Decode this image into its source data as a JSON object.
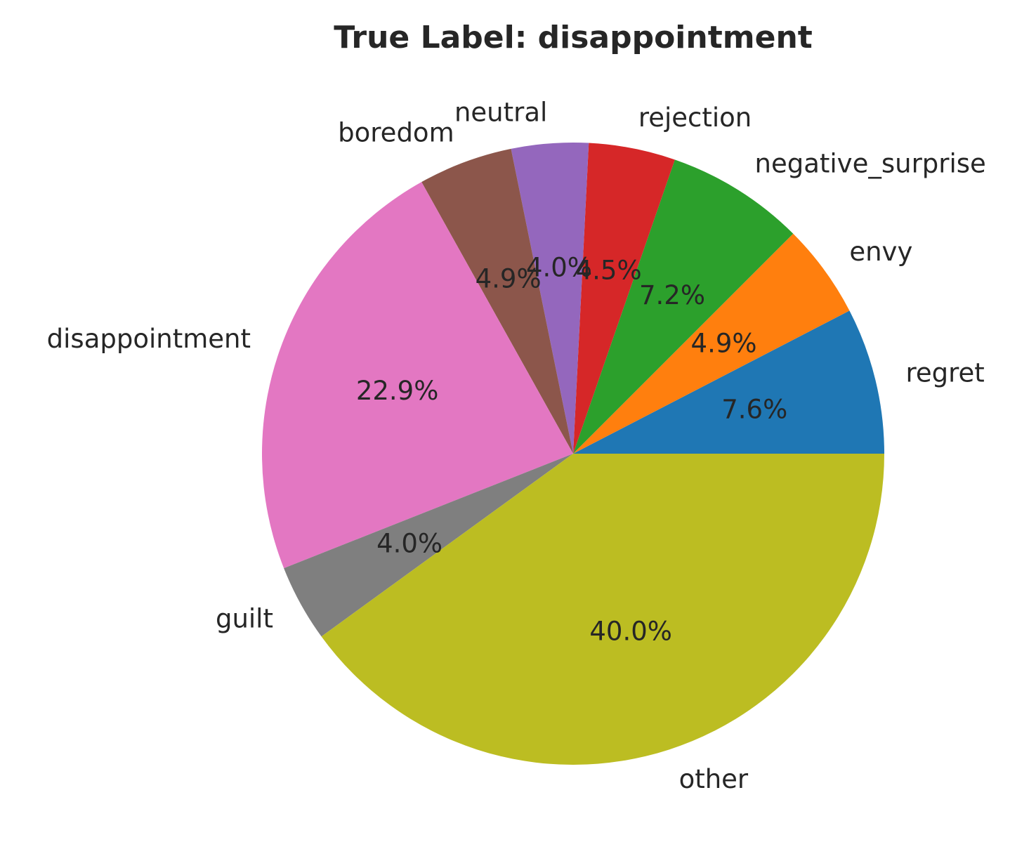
{
  "chart_data": {
    "type": "pie",
    "title": "True Label: disappointment",
    "slices": [
      {
        "label": "regret",
        "value": 7.6,
        "pct_text": "7.6%",
        "color": "#1f77b4"
      },
      {
        "label": "envy",
        "value": 4.9,
        "pct_text": "4.9%",
        "color": "#ff7f0e"
      },
      {
        "label": "negative_surprise",
        "value": 7.2,
        "pct_text": "7.2%",
        "color": "#2ca02c"
      },
      {
        "label": "rejection",
        "value": 4.5,
        "pct_text": "4.5%",
        "color": "#d62728"
      },
      {
        "label": "neutral",
        "value": 4.0,
        "pct_text": "4.0%",
        "color": "#9467bd"
      },
      {
        "label": "boredom",
        "value": 4.9,
        "pct_text": "4.9%",
        "color": "#8c564b"
      },
      {
        "label": "disappointment",
        "value": 22.9,
        "pct_text": "22.9%",
        "color": "#e377c2"
      },
      {
        "label": "guilt",
        "value": 4.0,
        "pct_text": "4.0%",
        "color": "#7f7f7f"
      },
      {
        "label": "other",
        "value": 40.0,
        "pct_text": "40.0%",
        "color": "#bcbd22"
      }
    ],
    "start_angle_deg": 0,
    "direction": "counterclockwise"
  }
}
